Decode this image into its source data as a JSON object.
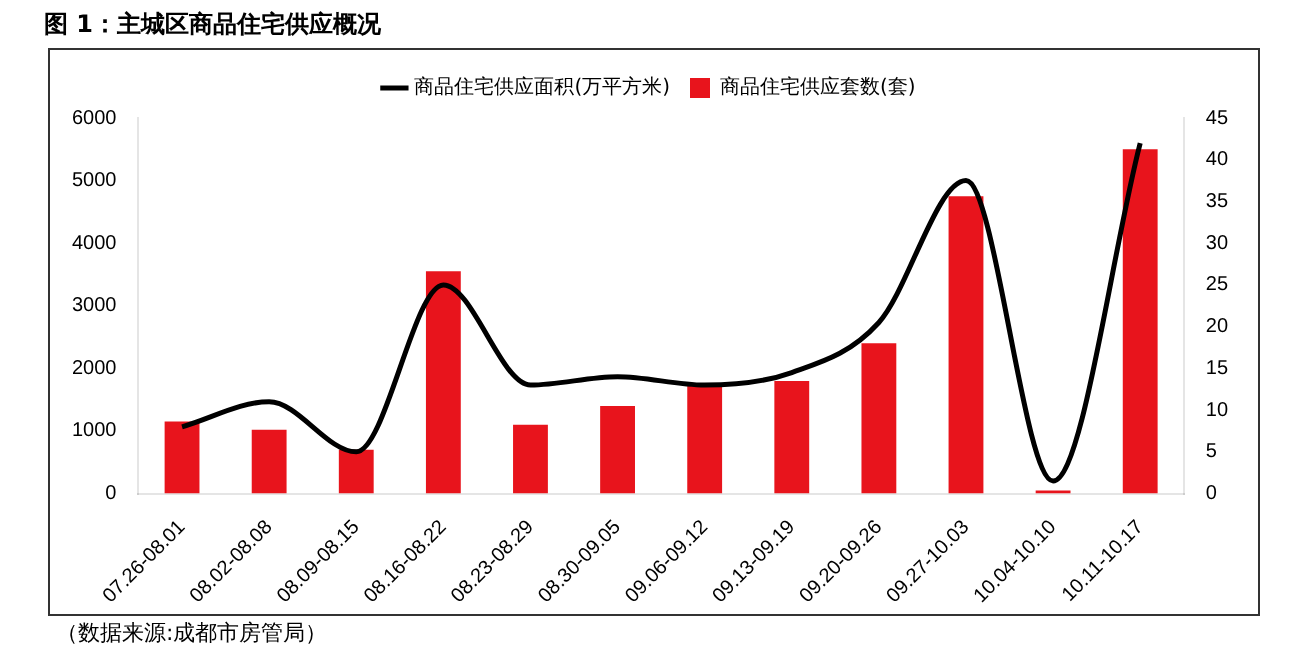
{
  "chart_data": {
    "type": "bar",
    "title": "图 1：主城区商品住宅供应概况",
    "categories": [
      "07.26-08.01",
      "08.02-08.08",
      "08.09-08.15",
      "08.16-08.22",
      "08.23-08.29",
      "08.30-09.05",
      "09.06-09.12",
      "09.13-09.19",
      "09.20-09.26",
      "09.27-10.03",
      "10.04-10.10",
      "10.11-10.17"
    ],
    "series": [
      {
        "name": "商品住宅供应套数(套)",
        "color": "#e8141c",
        "values": [
          1150,
          1020,
          700,
          3550,
          1100,
          1400,
          1750,
          1800,
          2400,
          4750,
          50,
          5500
        ]
      },
      {
        "name": "商品住宅供应面积(万平方米)",
        "type": "line",
        "axis": "y2",
        "color": "#000000",
        "values": [
          8,
          11,
          5,
          25,
          13,
          14,
          13,
          14.5,
          20.5,
          37.5,
          1.5,
          42
        ]
      }
    ],
    "ylim": [
      0,
      6000
    ],
    "yticks": [
      0,
      1000,
      2000,
      3000,
      4000,
      5000,
      6000
    ],
    "y2lim": [
      0,
      45
    ],
    "y2ticks": [
      0,
      5,
      10,
      15,
      20,
      25,
      30,
      35,
      40,
      45
    ],
    "legend": "top",
    "grid": false,
    "marker": "none",
    "annotations": [
      "（数据来源:成都市房管局）"
    ]
  }
}
